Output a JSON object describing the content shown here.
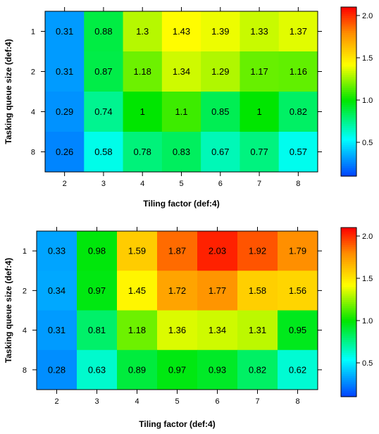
{
  "chart_data": [
    {
      "type": "heatmap",
      "xlabel": "Tiling factor (def:4)",
      "ylabel": "Tasking queue size (def:4)",
      "x": [
        "2",
        "3",
        "4",
        "5",
        "6",
        "7",
        "8"
      ],
      "y": [
        "1",
        "2",
        "4",
        "8"
      ],
      "values": [
        [
          0.31,
          0.88,
          1.3,
          1.43,
          1.39,
          1.33,
          1.37
        ],
        [
          0.31,
          0.87,
          1.18,
          1.34,
          1.29,
          1.17,
          1.16
        ],
        [
          0.29,
          0.74,
          1,
          1.1,
          0.85,
          1,
          0.82
        ],
        [
          0.26,
          0.58,
          0.78,
          0.83,
          0.67,
          0.77,
          0.57
        ]
      ],
      "cell_labels": [
        [
          "0.31",
          "0.88",
          "1.3",
          "1.43",
          "1.39",
          "1.33",
          "1.37"
        ],
        [
          "0.31",
          "0.87",
          "1.18",
          "1.34",
          "1.29",
          "1.17",
          "1.16"
        ],
        [
          "0.29",
          "0.74",
          "1",
          "1.1",
          "0.85",
          "1",
          "0.82"
        ],
        [
          "0.26",
          "0.58",
          "0.78",
          "0.83",
          "0.67",
          "0.77",
          "0.57"
        ]
      ],
      "colorbar": {
        "range": [
          0.1,
          2.1
        ],
        "ticks": [
          "0.5",
          "1.0",
          "1.5",
          "2.0"
        ],
        "tick_values": [
          0.5,
          1.0,
          1.5,
          2.0
        ]
      }
    },
    {
      "type": "heatmap",
      "xlabel": "Tiling factor (def:4)",
      "ylabel": "Tasking queue size (def:4)",
      "x": [
        "2",
        "3",
        "4",
        "5",
        "6",
        "7",
        "8"
      ],
      "y": [
        "1",
        "2",
        "4",
        "8"
      ],
      "values": [
        [
          0.33,
          0.98,
          1.59,
          1.87,
          2.03,
          1.92,
          1.79
        ],
        [
          0.34,
          0.97,
          1.45,
          1.72,
          1.77,
          1.58,
          1.56
        ],
        [
          0.31,
          0.81,
          1.18,
          1.36,
          1.34,
          1.31,
          0.95
        ],
        [
          0.28,
          0.63,
          0.89,
          0.97,
          0.93,
          0.82,
          0.62
        ]
      ],
      "cell_labels": [
        [
          "0.33",
          "0.98",
          "1.59",
          "1.87",
          "2.03",
          "1.92",
          "1.79"
        ],
        [
          "0.34",
          "0.97",
          "1.45",
          "1.72",
          "1.77",
          "1.58",
          "1.56"
        ],
        [
          "0.31",
          "0.81",
          "1.18",
          "1.36",
          "1.34",
          "1.31",
          "0.95"
        ],
        [
          "0.28",
          "0.63",
          "0.89",
          "0.97",
          "0.93",
          "0.82",
          "0.62"
        ]
      ],
      "colorbar": {
        "range": [
          0.1,
          2.1
        ],
        "ticks": [
          "0.5",
          "1.0",
          "1.5",
          "2.0"
        ],
        "tick_values": [
          0.5,
          1.0,
          1.5,
          2.0
        ]
      }
    }
  ]
}
